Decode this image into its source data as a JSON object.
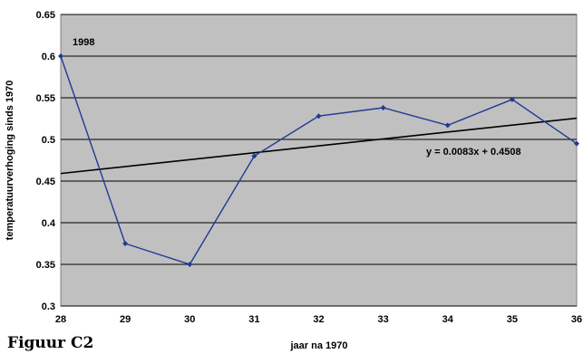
{
  "figure_label": "Figuur C2",
  "chart_data": {
    "type": "line",
    "xlabel": "jaar na 1970",
    "ylabel": "temperatuurverhoging sinds 1970",
    "xlim": [
      28,
      36
    ],
    "ylim": [
      0.3,
      0.65
    ],
    "x_ticks": [
      "28",
      "29",
      "30",
      "31",
      "32",
      "33",
      "34",
      "35",
      "36"
    ],
    "y_ticks": [
      "0.3",
      "0.35",
      "0.4",
      "0.45",
      "0.5",
      "0.55",
      "0.6",
      "0.65"
    ],
    "grid": "horizontal",
    "background_color": "#c0c0c0",
    "series": [
      {
        "color": "#1f3a93",
        "marker": "diamond",
        "x": [
          28,
          29,
          30,
          31,
          32,
          33,
          34,
          35,
          36
        ],
        "y": [
          0.6,
          0.375,
          0.35,
          0.48,
          0.528,
          0.538,
          0.517,
          0.548,
          0.495
        ]
      }
    ],
    "trendline": {
      "slope": 0.0083,
      "intercept": 0.4508,
      "x_offset": 27,
      "color": "#000000"
    },
    "annotations": {
      "point_label": "1998",
      "equation": "y = 0.0083x + 0.4508"
    }
  }
}
